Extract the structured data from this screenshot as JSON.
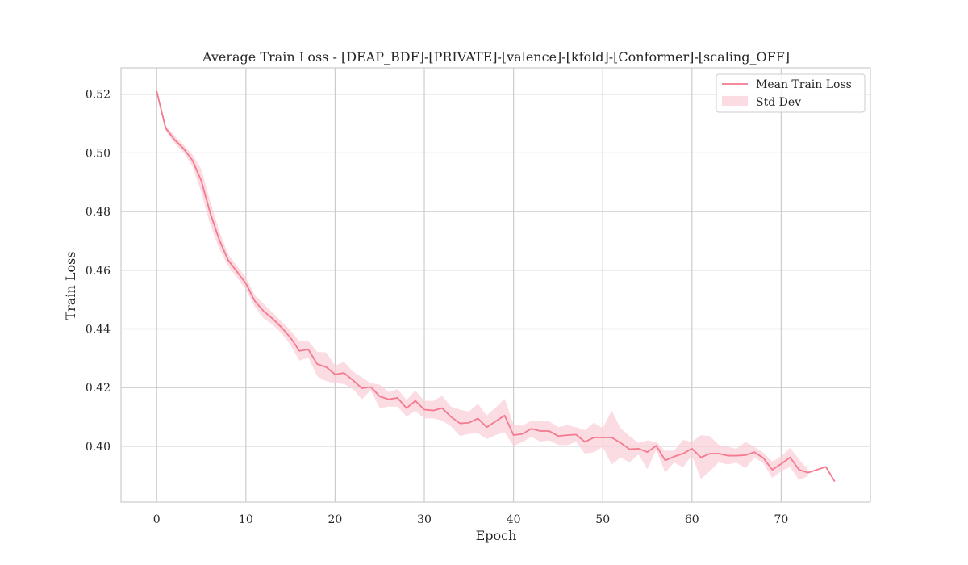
{
  "chart_data": {
    "type": "line",
    "title": "Average Train Loss - [DEAP_BDF]-[PRIVATE]-[valence]-[kfold]-[Conformer]-[scaling_OFF]",
    "xlabel": "Epoch",
    "ylabel": "Train Loss",
    "xlim": [
      -4,
      80
    ],
    "ylim": [
      0.381,
      0.529
    ],
    "xticks": [
      0,
      10,
      20,
      30,
      40,
      50,
      60,
      70
    ],
    "yticks": [
      0.4,
      0.42,
      0.44,
      0.46,
      0.48,
      0.5,
      0.52
    ],
    "ytick_labels": [
      "0.40",
      "0.42",
      "0.44",
      "0.46",
      "0.48",
      "0.50",
      "0.52"
    ],
    "grid": true,
    "legend_position": "top-right",
    "colors": {
      "line": "#f37a8f",
      "band": "#f9cdd5"
    },
    "series": [
      {
        "name": "Mean Train Loss",
        "x": [
          0,
          1,
          2,
          3,
          4,
          5,
          6,
          7,
          8,
          9,
          10,
          11,
          12,
          13,
          14,
          15,
          16,
          17,
          18,
          19,
          20,
          21,
          22,
          23,
          24,
          25,
          26,
          27,
          28,
          29,
          30,
          31,
          32,
          33,
          34,
          35,
          36,
          37,
          38,
          39,
          40,
          41,
          42,
          43,
          44,
          45,
          46,
          47,
          48,
          49,
          50,
          51,
          52,
          53,
          54,
          55,
          56,
          57,
          58,
          59,
          60,
          61,
          62,
          63,
          64,
          65,
          66,
          67,
          68,
          69,
          70,
          71,
          72,
          73,
          74,
          75,
          76
        ],
        "y": [
          0.521,
          0.5085,
          0.5045,
          0.5015,
          0.4975,
          0.4905,
          0.4795,
          0.4705,
          0.4635,
          0.4595,
          0.4555,
          0.4495,
          0.446,
          0.4435,
          0.4405,
          0.437,
          0.4325,
          0.433,
          0.428,
          0.427,
          0.4245,
          0.425,
          0.4225,
          0.4198,
          0.4202,
          0.417,
          0.416,
          0.4165,
          0.413,
          0.4155,
          0.4125,
          0.4122,
          0.413,
          0.41,
          0.4078,
          0.408,
          0.4095,
          0.4065,
          0.4085,
          0.4105,
          0.4038,
          0.4042,
          0.406,
          0.4052,
          0.4052,
          0.4035,
          0.4038,
          0.404,
          0.4015,
          0.403,
          0.403,
          0.403,
          0.4012,
          0.399,
          0.3992,
          0.398,
          0.4002,
          0.3952,
          0.3965,
          0.3975,
          0.3992,
          0.3962,
          0.3975,
          0.3975,
          0.3968,
          0.3968,
          0.397,
          0.398,
          0.396,
          0.392,
          0.394,
          0.3962,
          0.392,
          0.391,
          null,
          0.393,
          0.388
        ]
      }
    ],
    "band": {
      "name": "Std Dev",
      "x": [
        0,
        1,
        2,
        3,
        4,
        5,
        6,
        7,
        8,
        9,
        10,
        11,
        12,
        13,
        14,
        15,
        16,
        17,
        18,
        19,
        20,
        21,
        22,
        23,
        24,
        25,
        26,
        27,
        28,
        29,
        30,
        31,
        32,
        33,
        34,
        35,
        36,
        37,
        38,
        39,
        40,
        41,
        42,
        43,
        44,
        45,
        46,
        47,
        48,
        49,
        50,
        51,
        52,
        53,
        54,
        55,
        56,
        57,
        58,
        59,
        60,
        61,
        62,
        63,
        64,
        65,
        66,
        67,
        68,
        69,
        70,
        71,
        72,
        73
      ],
      "upper": [
        0.522,
        0.5095,
        0.5058,
        0.5028,
        0.4995,
        0.4945,
        0.4835,
        0.4735,
        0.4655,
        0.4615,
        0.4575,
        0.4515,
        0.4485,
        0.4455,
        0.4425,
        0.4395,
        0.4358,
        0.4358,
        0.4322,
        0.432,
        0.4275,
        0.4288,
        0.4255,
        0.4235,
        0.4215,
        0.421,
        0.4185,
        0.4195,
        0.4158,
        0.419,
        0.4155,
        0.4155,
        0.4172,
        0.4135,
        0.4125,
        0.4118,
        0.4145,
        0.4105,
        0.4132,
        0.4162,
        0.4075,
        0.407,
        0.4088,
        0.4088,
        0.4085,
        0.4065,
        0.4072,
        0.4065,
        0.4055,
        0.408,
        0.4062,
        0.4122,
        0.4062,
        0.4035,
        0.4012,
        0.402,
        0.4015,
        0.3985,
        0.3985,
        0.4022,
        0.4015,
        0.4038,
        0.4035,
        0.4005,
        0.3998,
        0.3992,
        0.4015,
        0.3998,
        0.3978,
        0.3948,
        0.3965,
        0.3995,
        0.3955,
        0.3922
      ],
      "lower": [
        0.52,
        0.5075,
        0.5032,
        0.5002,
        0.4955,
        0.4865,
        0.4755,
        0.4675,
        0.4615,
        0.4575,
        0.4535,
        0.4475,
        0.4435,
        0.4415,
        0.4385,
        0.4345,
        0.4292,
        0.4302,
        0.4238,
        0.4222,
        0.4215,
        0.4212,
        0.4195,
        0.416,
        0.419,
        0.413,
        0.4135,
        0.4135,
        0.4102,
        0.412,
        0.4095,
        0.4095,
        0.4088,
        0.4068,
        0.4035,
        0.4042,
        0.4045,
        0.4025,
        0.4038,
        0.4048,
        0.4001,
        0.4015,
        0.4032,
        0.4016,
        0.402,
        0.4005,
        0.4004,
        0.4015,
        0.3975,
        0.398,
        0.3998,
        0.3938,
        0.3962,
        0.3945,
        0.3972,
        0.3922,
        0.3988,
        0.391,
        0.3945,
        0.3928,
        0.3969,
        0.3888,
        0.3915,
        0.3945,
        0.3938,
        0.3944,
        0.3925,
        0.3962,
        0.3942,
        0.3892,
        0.3915,
        0.3929,
        0.3885,
        0.3898
      ]
    }
  }
}
